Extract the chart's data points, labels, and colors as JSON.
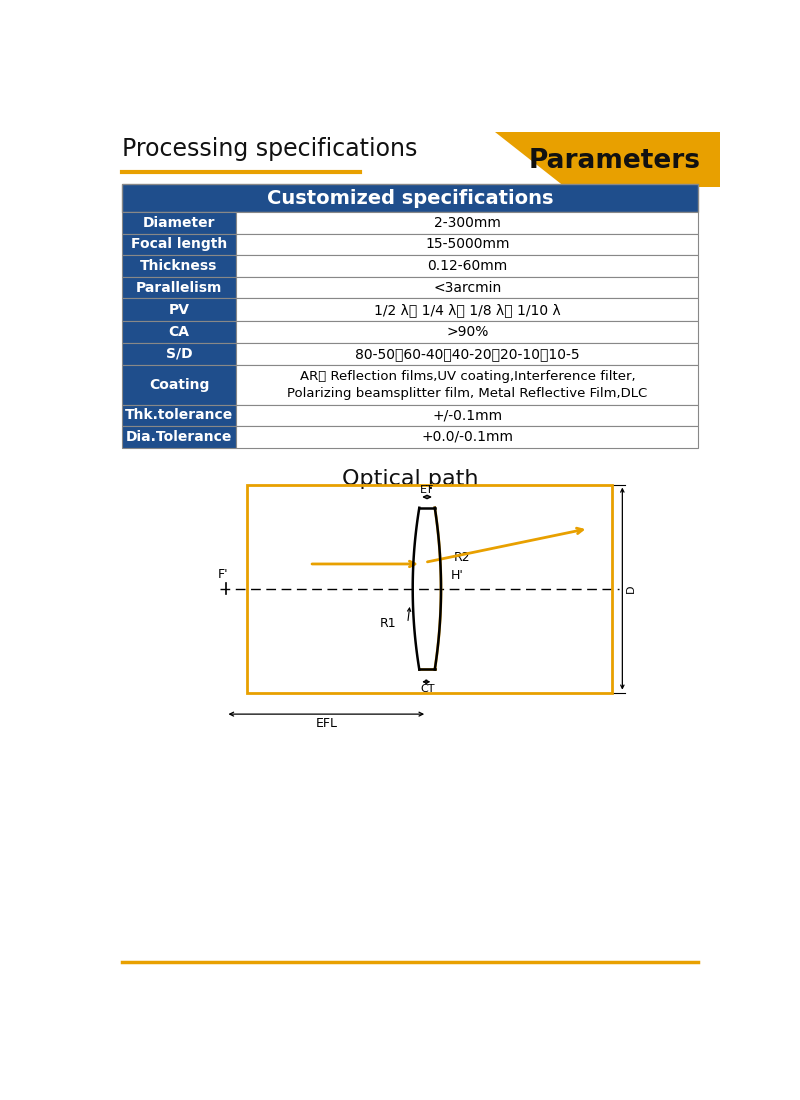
{
  "title_left": "Processing specifications",
  "title_right": "Parameters",
  "title_right_bg": "#E8A000",
  "header_bg": "#1F4E8C",
  "header_text": "Customized specifications",
  "header_text_color": "#FFFFFF",
  "row_label_bg": "#1F4E8C",
  "row_label_color": "#FFFFFF",
  "row_value_bg": "#FFFFFF",
  "row_value_color": "#000000",
  "border_color": "#888888",
  "table_rows": [
    [
      "Diameter",
      "2-300mm"
    ],
    [
      "Focal length",
      "15-5000mm"
    ],
    [
      "Thickness",
      "0.12-60mm"
    ],
    [
      "Parallelism",
      "<3arcmin"
    ],
    [
      "PV",
      "1/2 λ、 1/4 λ、 1/8 λ、 1/10 λ"
    ],
    [
      "CA",
      ">90%"
    ],
    [
      "S/D",
      "80-50、60-40、40-20、20-10、10-5"
    ],
    [
      "Coating",
      "AR、 Reflection films,UV coating,Interference filter,\nPolarizing beamsplitter film, Metal Reflective Film,DLC"
    ],
    [
      "Thk.tolerance",
      "+/-0.1mm"
    ],
    [
      "Dia.Tolerance",
      "+0.0/-0.1mm"
    ]
  ],
  "optical_path_title": "Optical path",
  "line_color": "#000000",
  "golden_color": "#E8A000",
  "underline_color": "#E8A000",
  "bottom_line_color": "#E8A000"
}
